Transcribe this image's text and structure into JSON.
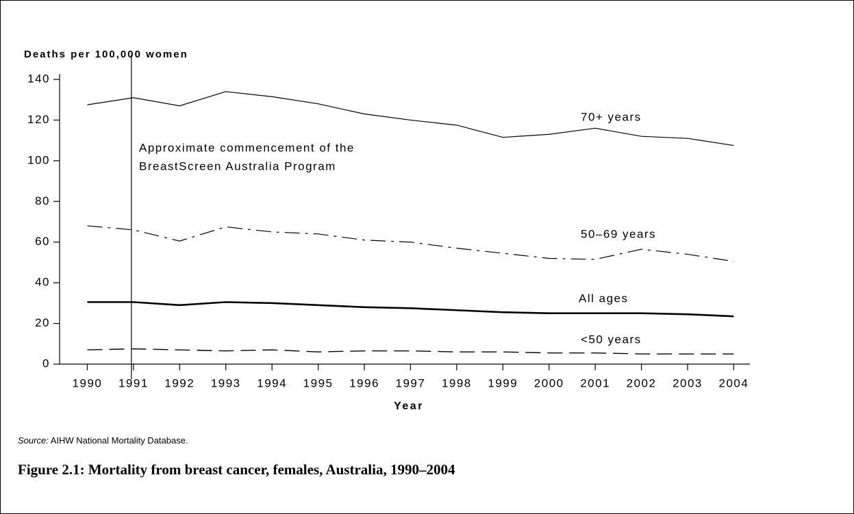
{
  "chart_data": {
    "type": "line",
    "y_label": "Deaths per 100,000 women",
    "x_label": "Year",
    "x": [
      1990,
      1991,
      1992,
      1993,
      1994,
      1995,
      1996,
      1997,
      1998,
      1999,
      2000,
      2001,
      2002,
      2003,
      2004
    ],
    "xlim": [
      1989.4,
      2004.35
    ],
    "xticks": [
      1990,
      1991,
      1992,
      1993,
      1994,
      1995,
      1996,
      1997,
      1998,
      1999,
      2000,
      2001,
      2002,
      2003,
      2004
    ],
    "ylim": [
      0,
      140
    ],
    "yticks": [
      0,
      20,
      40,
      60,
      80,
      100,
      120,
      140
    ],
    "series": [
      {
        "name": "70+ years",
        "color": "#000000",
        "style": "solid",
        "width": 1.2,
        "values": [
          127.5,
          131,
          127,
          134,
          131.5,
          128,
          123,
          120,
          117.5,
          111.5,
          113,
          116,
          112,
          111,
          107.5
        ]
      },
      {
        "name": "50–69 years",
        "color": "#000000",
        "style": "dashdot",
        "width": 1.2,
        "values": [
          68,
          66,
          60.5,
          67.5,
          65,
          64,
          61,
          60,
          57,
          54.5,
          52,
          51.5,
          56.5,
          54,
          50.5
        ]
      },
      {
        "name": "All ages",
        "color": "#000000",
        "style": "solid",
        "width": 2.6,
        "values": [
          30.5,
          30.5,
          29,
          30.5,
          30,
          29,
          28,
          27.5,
          26.5,
          25.5,
          25,
          25,
          25,
          24.5,
          23.5
        ]
      },
      {
        "name": "<50 years",
        "color": "#000000",
        "style": "dashed",
        "width": 1.4,
        "values": [
          7,
          7.5,
          7,
          6.5,
          7,
          6,
          6.5,
          6.5,
          6,
          6,
          5.5,
          5.5,
          5,
          5,
          5
        ]
      }
    ],
    "annotation": {
      "x": 1991,
      "lines": [
        "Approximate commencement of the",
        "BreastScreen Australia Program"
      ]
    }
  },
  "source_label": "Source:",
  "source_text": "AIHW National Mortality Database.",
  "caption": "Figure 2.1: Mortality from breast cancer, females, Australia, 1990–2004"
}
